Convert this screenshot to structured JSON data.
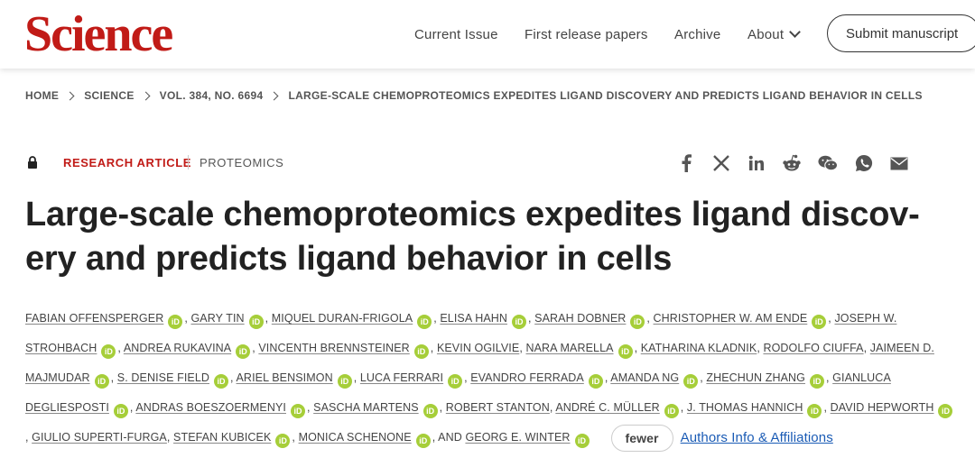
{
  "header": {
    "logo": "Science",
    "nav": {
      "current_issue": "Current Issue",
      "first_release": "First release papers",
      "archive": "Archive",
      "about": "About"
    },
    "submit_label": "Submit manuscript"
  },
  "breadcrumb": [
    "HOME",
    "SCIENCE",
    "VOL. 384, NO. 6694",
    "LARGE-SCALE CHEMOPROTEOMICS EXPEDITES LIGAND DISCOVERY AND PREDICTS LIGAND BEHAVIOR IN CELLS"
  ],
  "article": {
    "type": "RESEARCH ARTICLE",
    "subject": "PROTEOMICS",
    "title_line1": "Large-scale chemoproteomics expedites ligand discov-",
    "title_line2": "ery and predicts ligand behavior in cells"
  },
  "share_icons": [
    "facebook-icon",
    "x-icon",
    "linkedin-icon",
    "reddit-icon",
    "wechat-icon",
    "whatsapp-icon",
    "email-icon"
  ],
  "orcid_label": "iD",
  "authors": [
    {
      "name": "FABIAN OFFENSPERGER",
      "orcid": true
    },
    {
      "name": "GARY TIN",
      "orcid": true
    },
    {
      "name": "MIQUEL DURAN-FRIGOLA",
      "orcid": true
    },
    {
      "name": "ELISA HAHN",
      "orcid": true
    },
    {
      "name": "SARAH DOBNER",
      "orcid": true
    },
    {
      "name": "CHRISTOPHER W. AM ENDE",
      "orcid": true
    },
    {
      "name": "JOSEPH W. STROHBACH",
      "orcid": true
    },
    {
      "name": "ANDREA RUKAVINA",
      "orcid": true
    },
    {
      "name": "VINCENTH BRENNSTEINER",
      "orcid": true
    },
    {
      "name": "KEVIN OGILVIE",
      "orcid": false
    },
    {
      "name": "NARA MARELLA",
      "orcid": true
    },
    {
      "name": "KATHARINA KLADNIK",
      "orcid": false
    },
    {
      "name": "RODOLFO CIUFFA",
      "orcid": false
    },
    {
      "name": "JAIMEEN D. MAJMUDAR",
      "orcid": true
    },
    {
      "name": "S. DENISE FIELD",
      "orcid": true
    },
    {
      "name": "ARIEL BENSIMON",
      "orcid": true
    },
    {
      "name": "LUCA FERRARI",
      "orcid": true
    },
    {
      "name": "EVANDRO FERRADA",
      "orcid": true
    },
    {
      "name": "AMANDA NG",
      "orcid": true
    },
    {
      "name": "ZHECHUN ZHANG",
      "orcid": true
    },
    {
      "name": "GIANLUCA DEGLIESPOSTI",
      "orcid": true
    },
    {
      "name": "ANDRAS BOESZOERMENYI",
      "orcid": true
    },
    {
      "name": "SASCHA MARTENS",
      "orcid": true
    },
    {
      "name": "ROBERT STANTON",
      "orcid": false
    },
    {
      "name": "ANDRÉ C. MÜLLER",
      "orcid": true
    },
    {
      "name": "J. THOMAS HANNICH",
      "orcid": true
    },
    {
      "name": "DAVID HEPWORTH",
      "orcid": true
    },
    {
      "name": "GIULIO SUPERTI-FURGA",
      "orcid": false
    },
    {
      "name": "STEFAN KUBICEK",
      "orcid": true
    },
    {
      "name": "MONICA SCHENONE",
      "orcid": true
    },
    {
      "name": "GEORG E. WINTER",
      "orcid": true
    }
  ],
  "authors_and": "AND",
  "fewer_label": "fewer",
  "affiliations_label": "Authors Info & Affiliations",
  "colors": {
    "brand_red": "#c11b17",
    "orcid_green": "#a6ce39",
    "link_blue": "#1a5bb5"
  }
}
